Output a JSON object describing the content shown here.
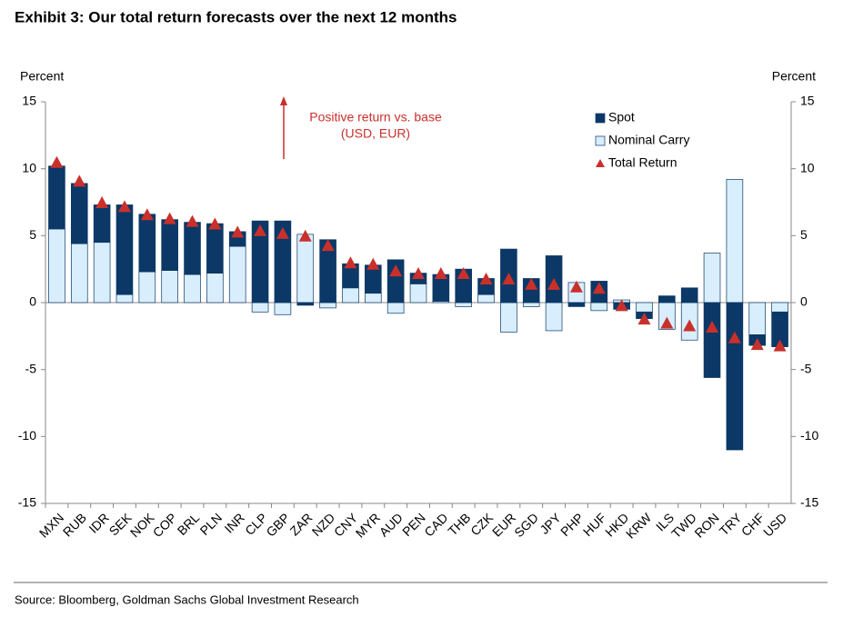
{
  "chart_data": {
    "type": "bar",
    "stacked": true,
    "title": "Exhibit 3: Our total return forecasts over the next 12 months",
    "ylabel": "Percent",
    "y2label": "Percent",
    "annotation": [
      "Positive return vs. base",
      "(USD, EUR)"
    ],
    "source": "Source: Bloomberg, Goldman Sachs Global Investment Research",
    "categories": [
      "MXN",
      "RUB",
      "IDR",
      "SEK",
      "NOK",
      "COP",
      "BRL",
      "PLN",
      "INR",
      "CLP",
      "GBP",
      "ZAR",
      "NZD",
      "CNY",
      "MYR",
      "AUD",
      "PEN",
      "CAD",
      "THB",
      "CZK",
      "EUR",
      "SGD",
      "JPY",
      "PHP",
      "HUF",
      "HKD",
      "KRW",
      "ILS",
      "TWD",
      "RON",
      "TRY",
      "CHF",
      "USD"
    ],
    "series": [
      {
        "name": "Nominal Carry",
        "color": "#d9eefc",
        "values": [
          5.5,
          4.4,
          4.5,
          0.6,
          2.3,
          2.4,
          2.1,
          2.2,
          4.2,
          -0.7,
          -0.9,
          5.1,
          -0.4,
          1.1,
          0.7,
          -0.8,
          1.4,
          0.1,
          -0.3,
          0.6,
          -2.2,
          -0.3,
          -2.1,
          1.5,
          -0.6,
          0.2,
          -0.7,
          -2.0,
          -2.8,
          3.7,
          9.2,
          -2.4,
          -0.7
        ]
      },
      {
        "name": "Spot",
        "color": "#0b3866",
        "values": [
          4.7,
          4.5,
          2.8,
          6.7,
          4.3,
          3.8,
          3.9,
          3.7,
          1.1,
          6.1,
          6.1,
          -0.2,
          4.7,
          1.8,
          2.1,
          3.2,
          0.8,
          2.0,
          2.5,
          1.2,
          4.0,
          1.8,
          3.5,
          -0.3,
          1.6,
          -0.5,
          -0.5,
          0.5,
          1.1,
          -5.6,
          -11.0,
          -0.8,
          -2.6
        ]
      },
      {
        "name": "Total Return",
        "color": "#c9302c",
        "marker": "triangle",
        "values": [
          10.4,
          9.0,
          7.4,
          7.1,
          6.5,
          6.2,
          6.0,
          5.8,
          5.2,
          5.3,
          5.1,
          4.9,
          4.2,
          2.9,
          2.8,
          2.3,
          2.1,
          2.1,
          2.1,
          1.7,
          1.7,
          1.3,
          1.3,
          1.1,
          1.0,
          -0.3,
          -1.3,
          -1.6,
          -1.8,
          -1.9,
          -2.7,
          -3.2,
          -3.3
        ]
      }
    ],
    "legend_order": [
      1,
      0,
      2
    ],
    "legend": "upper right",
    "ylim": [
      -15,
      15
    ],
    "yticks": [
      15,
      10,
      5,
      0,
      -5,
      -10,
      -15
    ],
    "y2lim": [
      -15,
      15
    ],
    "y2ticks": [
      15,
      10,
      5,
      0,
      -5,
      -10,
      -15
    ]
  }
}
